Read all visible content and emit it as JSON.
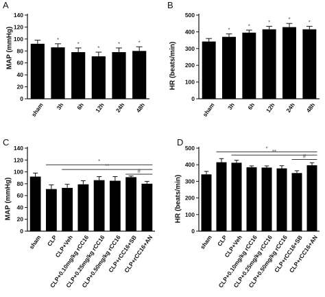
{
  "chart_data": [
    {
      "panel": "A",
      "type": "bar",
      "categories": [
        "sham",
        "3h",
        "6h",
        "12h",
        "24h",
        "48h"
      ],
      "values": [
        92,
        86,
        78,
        71,
        78,
        80
      ],
      "errors": [
        6,
        6,
        7,
        7,
        7,
        7
      ],
      "markers": [
        "",
        "*",
        "*",
        "*",
        "*",
        "*"
      ],
      "ylabel": "MAP (mmHg)",
      "ylim": [
        0,
        140
      ],
      "yticks": [
        0,
        20,
        40,
        60,
        80,
        100,
        120,
        140
      ],
      "comparisons": [],
      "color": "#000000"
    },
    {
      "panel": "B",
      "type": "bar",
      "categories": [
        "sham",
        "3h",
        "6h",
        "12h",
        "24h",
        "48h"
      ],
      "values": [
        342,
        370,
        395,
        415,
        428,
        415
      ],
      "errors": [
        18,
        18,
        15,
        18,
        22,
        18
      ],
      "markers": [
        "",
        "*",
        "*",
        "*",
        "*",
        "*"
      ],
      "ylabel": "HR (beats/min)",
      "ylim": [
        0,
        500
      ],
      "yticks": [
        0,
        100,
        200,
        300,
        400,
        500
      ],
      "comparisons": [],
      "color": "#000000"
    },
    {
      "panel": "C",
      "type": "bar",
      "categories": [
        "sham",
        "CLP",
        "CLP+Veh",
        "CLP+0.10mg/kg rCC16",
        "CLP+0.25mg/kg rCC16",
        "CLP+0.50mg/kg rCC16",
        "CLP+rCC16+SB",
        "CLP+rCC16+AN"
      ],
      "values": [
        92,
        71,
        73,
        79,
        86,
        85,
        91,
        80
      ],
      "errors": [
        6,
        7,
        6,
        6,
        6,
        7,
        2,
        4
      ],
      "markers": [
        "",
        "",
        "",
        "",
        "",
        "",
        "",
        ""
      ],
      "ylabel": "MAP (mmHg)",
      "ylim": [
        0,
        140
      ],
      "yticks": [
        0,
        20,
        40,
        60,
        80,
        100,
        120,
        140
      ],
      "comparisons": [
        {
          "from": 1,
          "to": 7,
          "label": "*",
          "y": 112
        },
        {
          "from": 2,
          "to": 7,
          "label": "**",
          "y": 104
        },
        {
          "from": 6,
          "to": 7,
          "label": "#",
          "y": 96
        }
      ],
      "color": "#000000"
    },
    {
      "panel": "D",
      "type": "bar",
      "categories": [
        "sham",
        "CLP",
        "CLP+Veh",
        "CLP+0.10mg/kg rCC16",
        "CLP+0.25mg/kg rCC16",
        "CLP+0.50mg/kg rCC16",
        "CLP+rCC16+SB",
        "CLP+rCC16+AN"
      ],
      "values": [
        342,
        415,
        412,
        385,
        383,
        378,
        350,
        397
      ],
      "errors": [
        18,
        22,
        15,
        8,
        10,
        16,
        14,
        15
      ],
      "markers": [
        "",
        "",
        "",
        "",
        "",
        "",
        "",
        ""
      ],
      "ylabel": "HR (beats/min)",
      "ylim": [
        0,
        500
      ],
      "yticks": [
        0,
        100,
        200,
        300,
        400,
        500
      ],
      "comparisons": [
        {
          "from": 1,
          "to": 7,
          "label": "*",
          "y": 478
        },
        {
          "from": 2,
          "to": 7,
          "label": "**",
          "y": 458
        },
        {
          "from": 6,
          "to": 7,
          "label": "#",
          "y": 432
        }
      ],
      "color": "#000000"
    }
  ]
}
